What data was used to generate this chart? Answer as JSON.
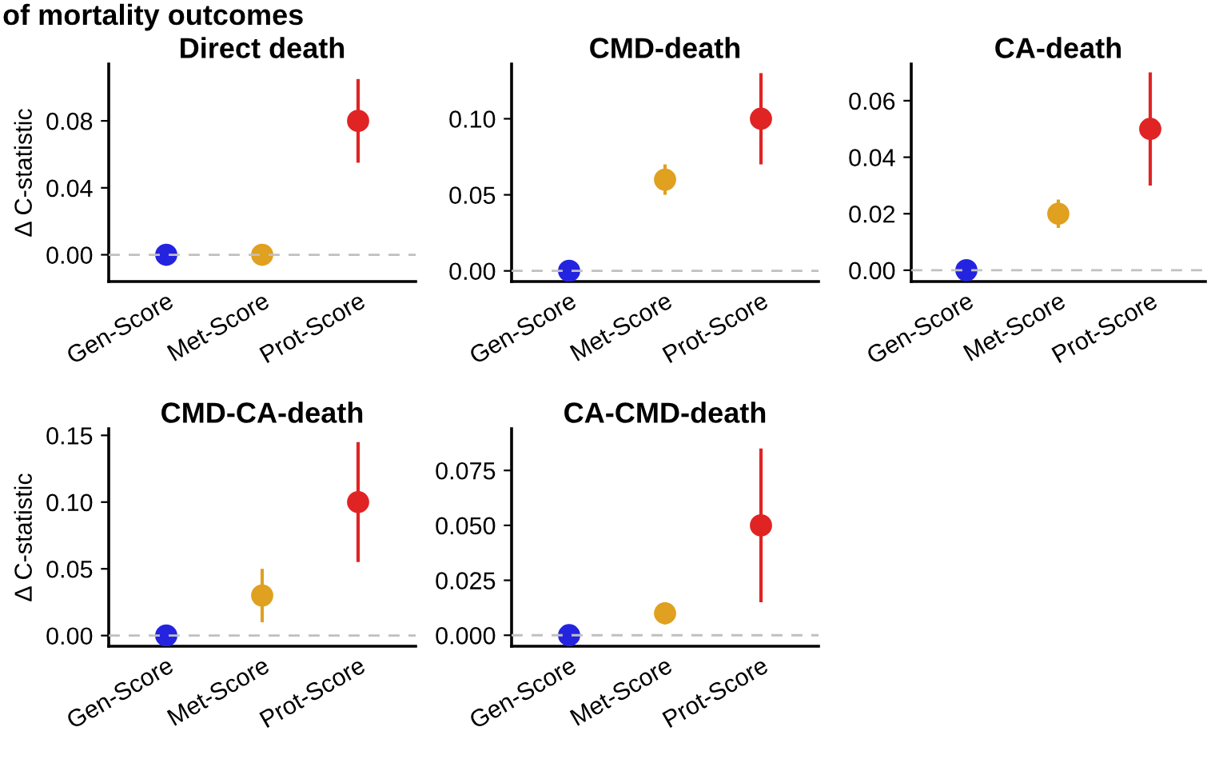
{
  "chart_data": [
    {
      "type": "scatter",
      "title": "Direct death",
      "ylabel": "Δ C-statistic",
      "annotations": [
        "of mortality outcomes"
      ],
      "categories": [
        "Gen-Score",
        "Met-Score",
        "Prot-Score"
      ],
      "values": [
        0,
        0,
        0.08
      ],
      "colors": [
        "#2424e0",
        "#e0a020",
        "#e02424"
      ],
      "errors": [
        null,
        null,
        [
          0.055,
          0.105
        ]
      ],
      "ylim": [
        -0.016,
        0.114
      ],
      "yticks": [
        {
          "value": 0,
          "label": "0.00"
        },
        0.04,
        0.08
      ],
      "ref_lines": [
        {
          "axis": "y",
          "value": 0,
          "color": "#c0c0c0",
          "line_style": "dashed"
        }
      ],
      "marker": "circle",
      "grid": false
    },
    {
      "type": "scatter",
      "title": "CMD-death",
      "categories": [
        "Gen-Score",
        "Met-Score",
        "Prot-Score"
      ],
      "values": [
        0,
        0.06,
        0.1
      ],
      "colors": [
        "#2424e0",
        "#e0a020",
        "#e02424"
      ],
      "errors": [
        null,
        [
          0.05,
          0.07
        ],
        [
          0.07,
          0.13
        ]
      ],
      "ylim": [
        -0.007,
        0.136
      ],
      "yticks": [
        {
          "value": 0,
          "label": "0.00"
        },
        0.05,
        {
          "value": 0.1,
          "label": "0.10"
        }
      ],
      "ref_lines": [
        {
          "axis": "y",
          "value": 0,
          "color": "#c0c0c0",
          "line_style": "dashed"
        }
      ],
      "marker": "circle",
      "grid": false
    },
    {
      "type": "scatter",
      "title": "CA-death",
      "categories": [
        "Gen-Score",
        "Met-Score",
        "Prot-Score"
      ],
      "values": [
        0,
        0.02,
        0.05
      ],
      "colors": [
        "#2424e0",
        "#e0a020",
        "#e02424"
      ],
      "errors": [
        null,
        [
          0.015,
          0.025
        ],
        [
          0.03,
          0.07
        ]
      ],
      "ylim": [
        -0.004,
        0.073
      ],
      "yticks": [
        {
          "value": 0,
          "label": "0.00"
        },
        0.02,
        0.04,
        0.06
      ],
      "ref_lines": [
        {
          "axis": "y",
          "value": 0,
          "color": "#c0c0c0",
          "line_style": "dashed"
        }
      ],
      "marker": "circle",
      "grid": false
    },
    {
      "type": "scatter",
      "title": "CMD-CA-death",
      "ylabel": "Δ C-statistic",
      "categories": [
        "Gen-Score",
        "Met-Score",
        "Prot-Score"
      ],
      "values": [
        0,
        0.03,
        0.1
      ],
      "colors": [
        "#2424e0",
        "#e0a020",
        "#e02424"
      ],
      "errors": [
        null,
        [
          0.01,
          0.05
        ],
        [
          0.055,
          0.145
        ]
      ],
      "ylim": [
        -0.008,
        0.155
      ],
      "yticks": [
        {
          "value": 0,
          "label": "0.00"
        },
        0.05,
        {
          "value": 0.1,
          "label": "0.10"
        },
        0.15
      ],
      "ref_lines": [
        {
          "axis": "y",
          "value": 0,
          "color": "#c0c0c0",
          "line_style": "dashed"
        }
      ],
      "marker": "circle",
      "grid": false
    },
    {
      "type": "scatter",
      "title": "CA-CMD-death",
      "categories": [
        "Gen-Score",
        "Met-Score",
        "Prot-Score"
      ],
      "values": [
        0,
        0.01,
        0.05
      ],
      "colors": [
        "#2424e0",
        "#e0a020",
        "#e02424"
      ],
      "errors": [
        null,
        [
          0.005,
          0.015
        ],
        [
          0.015,
          0.085
        ]
      ],
      "ylim": [
        -0.005,
        0.094
      ],
      "yticks": [
        {
          "value": 0,
          "label": "0.000"
        },
        0.025,
        {
          "value": 0.05,
          "label": "0.050"
        },
        0.075
      ],
      "ref_lines": [
        {
          "axis": "y",
          "value": 0,
          "color": "#c0c0c0",
          "line_style": "dashed"
        }
      ],
      "marker": "circle",
      "grid": false
    }
  ]
}
